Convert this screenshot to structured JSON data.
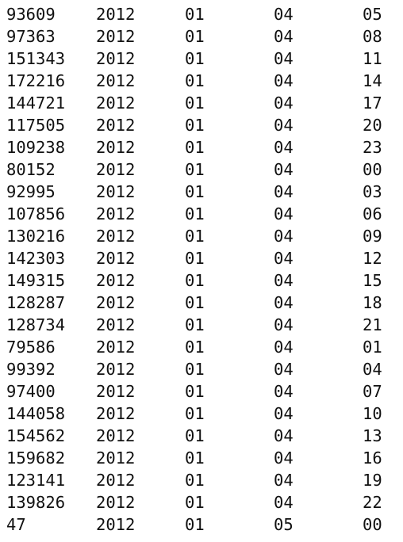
{
  "output": {
    "rows": [
      [
        "93609",
        "2012",
        "01",
        "04",
        "05"
      ],
      [
        "97363",
        "2012",
        "01",
        "04",
        "08"
      ],
      [
        "151343",
        "2012",
        "01",
        "04",
        "11"
      ],
      [
        "172216",
        "2012",
        "01",
        "04",
        "14"
      ],
      [
        "144721",
        "2012",
        "01",
        "04",
        "17"
      ],
      [
        "117505",
        "2012",
        "01",
        "04",
        "20"
      ],
      [
        "109238",
        "2012",
        "01",
        "04",
        "23"
      ],
      [
        "80152",
        "2012",
        "01",
        "04",
        "00"
      ],
      [
        "92995",
        "2012",
        "01",
        "04",
        "03"
      ],
      [
        "107856",
        "2012",
        "01",
        "04",
        "06"
      ],
      [
        "130216",
        "2012",
        "01",
        "04",
        "09"
      ],
      [
        "142303",
        "2012",
        "01",
        "04",
        "12"
      ],
      [
        "149315",
        "2012",
        "01",
        "04",
        "15"
      ],
      [
        "128287",
        "2012",
        "01",
        "04",
        "18"
      ],
      [
        "128734",
        "2012",
        "01",
        "04",
        "21"
      ],
      [
        "79586",
        "2012",
        "01",
        "04",
        "01"
      ],
      [
        "99392",
        "2012",
        "01",
        "04",
        "04"
      ],
      [
        "97400",
        "2012",
        "01",
        "04",
        "07"
      ],
      [
        "144058",
        "2012",
        "01",
        "04",
        "10"
      ],
      [
        "154562",
        "2012",
        "01",
        "04",
        "13"
      ],
      [
        "159682",
        "2012",
        "01",
        "04",
        "16"
      ],
      [
        "123141",
        "2012",
        "01",
        "04",
        "19"
      ],
      [
        "139826",
        "2012",
        "01",
        "04",
        "22"
      ],
      [
        "47",
        "2012",
        "01",
        "05",
        "00"
      ]
    ]
  }
}
